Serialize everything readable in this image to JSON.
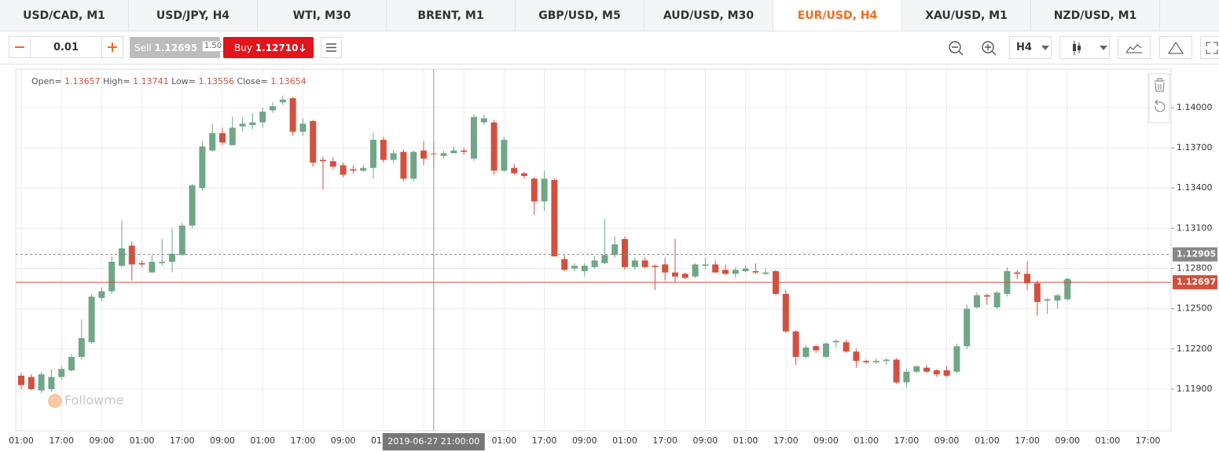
{
  "tabs": [
    {
      "label": "USD/CAD, M1"
    },
    {
      "label": "USD/JPY, H4"
    },
    {
      "label": "WTI, M30"
    },
    {
      "label": "BRENT, M1"
    },
    {
      "label": "GBP/USD, M5"
    },
    {
      "label": "AUD/USD, M30"
    },
    {
      "label": "EUR/USD, H4",
      "active": true
    },
    {
      "label": "XAU/USD, M1"
    },
    {
      "label": "NZD/USD, M1"
    }
  ],
  "toolbar": {
    "lot": "0.01",
    "sell_label": "Sell",
    "sell_price": "1.12695",
    "spread": "1.50",
    "buy_label": "Buy",
    "buy_price": "1.12710",
    "timeframe": "H4"
  },
  "chart_data": {
    "type": "candlestick",
    "watermark": "Followme",
    "ohlc_info": {
      "open_label": "Open=",
      "open": 1.13657,
      "high_label": "High=",
      "high": 1.13741,
      "low_label": "Low=",
      "low": 1.13556,
      "close_label": "Close=",
      "close": 1.13654
    },
    "crosshair_label": "2019-06-27 21:00:00",
    "up_color": "#6fa787",
    "down_color": "#d4503e",
    "categories": [
      "01:00",
      null,
      null,
      null,
      "17:00",
      null,
      null,
      null,
      "09:00",
      null,
      null,
      null,
      "01:00",
      null,
      null,
      null,
      "17:00",
      null,
      null,
      null,
      "09:00",
      null,
      null,
      null,
      "01:00",
      null,
      null,
      null,
      "17:00",
      null,
      null,
      null,
      "09:00",
      null,
      null,
      null,
      "01:00",
      null,
      null,
      null,
      "17:00",
      null,
      null,
      null,
      "09:00",
      null,
      null,
      null,
      "01:00",
      null,
      null,
      null,
      "17:00",
      null,
      null,
      null,
      "09:00",
      null,
      null,
      null,
      "01:00",
      null,
      null,
      null,
      "17:00",
      null,
      null,
      null,
      "09:00",
      null,
      null,
      null,
      "01:00",
      null,
      null,
      null,
      "17:00",
      null,
      null,
      null,
      "09:00",
      null,
      null,
      null,
      "01:00",
      null,
      null,
      null,
      "17:00",
      null,
      null,
      null,
      "09:00",
      null,
      null,
      null,
      "01:00",
      null,
      null,
      null,
      "17:00",
      null,
      null,
      null,
      "09:00",
      null,
      null,
      null,
      "01:00",
      null,
      null,
      null,
      "17:00"
    ],
    "open": [
      1.12,
      1.1199,
      1.1189,
      1.119,
      1.1199,
      1.1204,
      1.1214,
      1.1225,
      1.1258,
      1.1263,
      1.1282,
      1.1297,
      1.1284,
      1.1277,
      1.1284,
      1.1285,
      1.129,
      1.1312,
      1.134,
      1.1368,
      1.1381,
      1.1372,
      1.1386,
      1.1387,
      1.1389,
      1.1398,
      1.1404,
      1.1407,
      1.1382,
      1.139,
      1.1361,
      1.136,
      1.1357,
      1.1354,
      1.1353,
      1.1355,
      1.1376,
      1.1361,
      1.1367,
      1.1347,
      1.1368,
      1.13657,
      1.1364,
      1.1366,
      1.1368,
      1.1362,
      1.1389,
      1.1389,
      1.1353,
      1.1355,
      1.1351,
      1.1347,
      1.133,
      1.1346,
      1.1287,
      1.128,
      1.1278,
      1.1281,
      1.1284,
      1.129,
      1.1302,
      1.1281,
      1.1286,
      1.1282,
      1.1283,
      1.1277,
      1.1276,
      1.1274,
      1.1282,
      1.1283,
      1.1279,
      1.1276,
      1.1278,
      1.1278,
      1.1276,
      1.1278,
      1.1261,
      1.1233,
      1.1214,
      1.1222,
      1.1214,
      1.1225,
      1.1225,
      1.1218,
      1.1211,
      1.121,
      1.1211,
      1.1212,
      1.1195,
      1.1203,
      1.1206,
      1.1204,
      1.1204,
      1.1203,
      1.1222,
      1.1251,
      1.126,
      1.1251,
      1.1261,
      1.1277,
      1.1276,
      1.1269,
      1.1256,
      1.1256,
      1.1257,
      null,
      null,
      null,
      null,
      null,
      null,
      null,
      null
    ],
    "high": [
      1.1202,
      1.1201,
      1.1203,
      1.1205,
      1.1207,
      1.1216,
      1.1242,
      1.1261,
      1.1266,
      1.1289,
      1.1316,
      1.13,
      1.1286,
      1.129,
      1.1302,
      1.131,
      1.1314,
      1.1343,
      1.1375,
      1.1388,
      1.1385,
      1.1393,
      1.1393,
      1.1396,
      1.14,
      1.1404,
      1.1409,
      1.1408,
      1.1392,
      1.1391,
      1.1363,
      1.1363,
      1.1359,
      1.1357,
      1.1357,
      1.1381,
      1.1378,
      1.1368,
      1.1369,
      1.1368,
      1.1375,
      1.13741,
      1.1368,
      1.1371,
      1.137,
      1.1395,
      1.1395,
      1.1391,
      1.1378,
      1.1358,
      1.1352,
      1.1348,
      1.1353,
      1.1347,
      1.129,
      1.1284,
      1.1284,
      1.1289,
      1.1317,
      1.1304,
      1.1304,
      1.1288,
      1.1288,
      1.1283,
      1.1288,
      1.1302,
      1.1277,
      1.1284,
      1.1288,
      1.1286,
      1.1283,
      1.1281,
      1.1282,
      1.1284,
      1.128,
      1.1279,
      1.1264,
      1.1234,
      1.1223,
      1.1223,
      1.1225,
      1.1227,
      1.1227,
      1.122,
      1.1212,
      1.1213,
      1.1213,
      1.1213,
      1.1205,
      1.1208,
      1.1208,
      1.1205,
      1.1207,
      1.1224,
      1.1253,
      1.1262,
      1.1261,
      1.1263,
      1.1281,
      1.1279,
      1.1285,
      1.1271,
      1.1258,
      1.1261,
      1.127,
      null,
      null,
      null,
      null,
      null,
      null,
      null,
      null
    ],
    "low": [
      1.119,
      1.1189,
      1.1187,
      1.1188,
      1.1197,
      1.1203,
      1.1212,
      1.1224,
      1.1256,
      1.1261,
      1.1281,
      1.1271,
      1.1281,
      1.1277,
      1.1282,
      1.1277,
      1.129,
      1.131,
      1.1338,
      1.1367,
      1.1372,
      1.1372,
      1.1382,
      1.1384,
      1.1385,
      1.1396,
      1.1402,
      1.1379,
      1.1379,
      1.1356,
      1.1339,
      1.1354,
      1.1348,
      1.1351,
      1.1352,
      1.1347,
      1.1359,
      1.1359,
      1.1345,
      1.1345,
      1.1357,
      1.13556,
      1.1362,
      1.1366,
      1.1365,
      1.136,
      1.1387,
      1.135,
      1.1352,
      1.135,
      1.1347,
      1.132,
      1.1323,
      1.1289,
      1.1278,
      1.1278,
      1.1274,
      1.128,
      1.1283,
      1.1288,
      1.1279,
      1.1279,
      1.128,
      1.1264,
      1.1271,
      1.127,
      1.1272,
      1.1273,
      1.128,
      1.1277,
      1.1275,
      1.1273,
      1.1277,
      1.1276,
      1.1275,
      1.126,
      1.1232,
      1.1208,
      1.1213,
      1.1217,
      1.1213,
      1.1221,
      1.1217,
      1.1206,
      1.1209,
      1.1209,
      1.1208,
      1.1194,
      1.1191,
      1.1202,
      1.1202,
      1.1199,
      1.1199,
      1.1202,
      1.122,
      1.125,
      1.1253,
      1.125,
      1.1259,
      1.1272,
      1.1264,
      1.1245,
      1.1246,
      1.125,
      1.1256,
      null,
      null,
      null,
      null,
      null,
      null,
      null,
      null
    ],
    "close": [
      1.1193,
      1.119,
      1.1201,
      1.1199,
      1.1205,
      1.1214,
      1.1228,
      1.1259,
      1.1263,
      1.1285,
      1.1295,
      1.1283,
      1.1283,
      1.1285,
      1.1285,
      1.1291,
      1.1312,
      1.1342,
      1.1371,
      1.1381,
      1.1374,
      1.1385,
      1.1388,
      1.1389,
      1.1397,
      1.1401,
      1.1406,
      1.1382,
      1.1388,
      1.1359,
      1.136,
      1.1356,
      1.135,
      1.1353,
      1.1355,
      1.1376,
      1.1361,
      1.1366,
      1.1347,
      1.1367,
      1.1362,
      1.13654,
      1.1366,
      1.1368,
      1.1367,
      1.1393,
      1.1392,
      1.1353,
      1.1376,
      1.1351,
      1.1349,
      1.133,
      1.1347,
      1.1289,
      1.1279,
      1.1282,
      1.1282,
      1.1286,
      1.129,
      1.1298,
      1.1281,
      1.1286,
      1.1281,
      1.1281,
      1.1277,
      1.1274,
      1.1273,
      1.1283,
      1.1283,
      1.1277,
      1.1276,
      1.1279,
      1.128,
      1.1277,
      1.1277,
      1.1261,
      1.1233,
      1.1214,
      1.1221,
      1.1219,
      1.1224,
      1.1226,
      1.1218,
      1.1211,
      1.121,
      1.1211,
      1.1212,
      1.1195,
      1.1203,
      1.1207,
      1.1203,
      1.1201,
      1.12,
      1.1222,
      1.125,
      1.126,
      1.1259,
      1.1262,
      1.1278,
      1.1276,
      1.1269,
      1.1255,
      1.1257,
      1.126,
      1.12697,
      null,
      null,
      null,
      null,
      null,
      null,
      null,
      null
    ],
    "ylim": [
      1.11589,
      1.14287
    ],
    "yticks": [
      {
        "value": 1.119,
        "label": "1.11900"
      },
      {
        "value": 1.122,
        "label": "1.12200"
      },
      {
        "value": 1.125,
        "label": "1.12500"
      },
      {
        "value": 1.128,
        "label": "1.12800"
      },
      {
        "value": 1.131,
        "label": "1.13100"
      },
      {
        "value": 1.134,
        "label": "1.13400"
      },
      {
        "value": 1.137,
        "label": "1.13700"
      },
      {
        "value": 1.14,
        "label": "1.14000"
      }
    ],
    "price_lines": [
      {
        "value": 1.12905,
        "color": "#888888",
        "dashed": true
      },
      {
        "value": 1.12697,
        "color": "#d4503e",
        "dashed": false
      }
    ],
    "grid": true
  }
}
